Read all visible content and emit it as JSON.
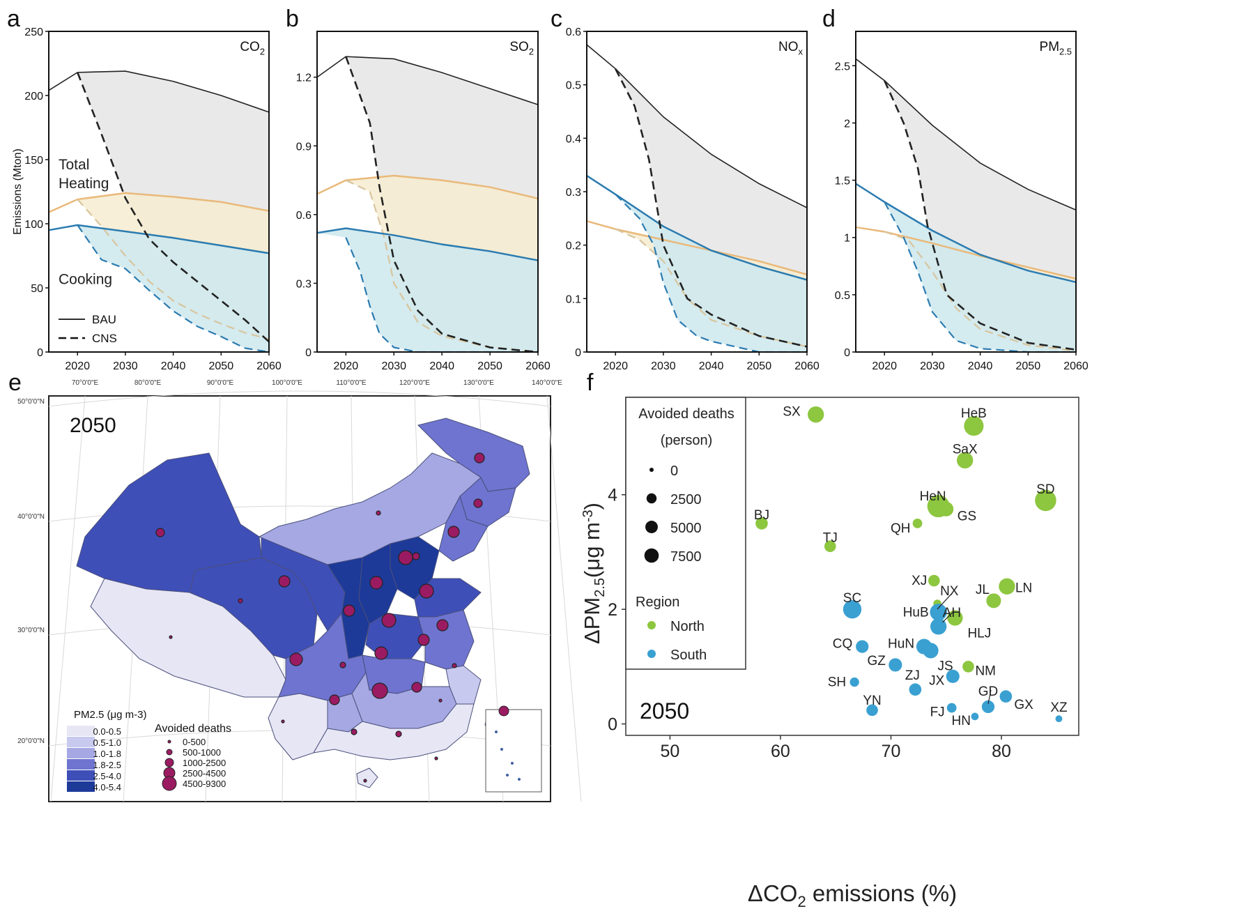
{
  "panels": {
    "a": "a",
    "b": "b",
    "c": "c",
    "d": "d",
    "e": "e",
    "f": "f"
  },
  "colors": {
    "total_fill": "#e9e9e9",
    "heating_fill": "#f6ecd0",
    "cooking_fill": "#cfe9ee",
    "total_line": "#222222",
    "heating_line": "#e9b97a",
    "cooking_line": "#2b7bb0",
    "north": "#8dc63f",
    "south": "#3aa0d2",
    "death_dot": "#9b1b62",
    "map_bins": [
      "#e6e6f5",
      "#c8c9ee",
      "#a5a8e3",
      "#6e74cf",
      "#3f4fb8",
      "#1d3a99"
    ]
  },
  "chart_data": [
    {
      "id": "a",
      "type": "line",
      "title": "CO2",
      "ylabel": "Emissions (Mton)",
      "xlim": [
        2014,
        2060
      ],
      "ylim": [
        0,
        250
      ],
      "xticks": [
        2020,
        2030,
        2040,
        2050,
        2060
      ],
      "yticks": [
        0,
        50,
        100,
        150,
        200,
        250
      ],
      "annotations": [
        "Total",
        "Heating",
        "Cooking"
      ],
      "legend": [
        "BAU",
        "CNS"
      ],
      "series": [
        {
          "name": "Total",
          "scenario": "BAU",
          "x": [
            2014,
            2020,
            2030,
            2040,
            2050,
            2060
          ],
          "values": [
            204,
            218,
            219,
            211,
            200,
            187
          ]
        },
        {
          "name": "Heating",
          "scenario": "BAU",
          "x": [
            2014,
            2020,
            2030,
            2040,
            2050,
            2060
          ],
          "values": [
            109,
            119,
            124,
            121,
            117,
            110
          ]
        },
        {
          "name": "Cooking",
          "scenario": "BAU",
          "x": [
            2014,
            2020,
            2030,
            2040,
            2050,
            2060
          ],
          "values": [
            95,
            99,
            94,
            89,
            83,
            77
          ]
        },
        {
          "name": "Total",
          "scenario": "CNS",
          "x": [
            2020,
            2025,
            2030,
            2035,
            2040,
            2045,
            2050,
            2055,
            2060
          ],
          "values": [
            218,
            170,
            120,
            88,
            70,
            55,
            40,
            25,
            8
          ]
        },
        {
          "name": "Heating",
          "scenario": "CNS",
          "x": [
            2020,
            2025,
            2030,
            2035,
            2040,
            2045,
            2050,
            2055,
            2060
          ],
          "values": [
            119,
            98,
            75,
            55,
            40,
            30,
            22,
            15,
            10
          ]
        },
        {
          "name": "Cooking",
          "scenario": "CNS",
          "x": [
            2020,
            2025,
            2030,
            2035,
            2040,
            2045,
            2050,
            2055,
            2060
          ],
          "values": [
            99,
            72,
            65,
            48,
            32,
            20,
            12,
            3,
            0
          ]
        }
      ]
    },
    {
      "id": "b",
      "type": "line",
      "title": "SO2",
      "xlim": [
        2014,
        2060
      ],
      "ylim": [
        0,
        1.4
      ],
      "xticks": [
        2020,
        2030,
        2040,
        2050,
        2060
      ],
      "yticks": [
        0,
        0.3,
        0.6,
        0.9,
        1.2
      ],
      "series": [
        {
          "name": "Total",
          "scenario": "BAU",
          "x": [
            2014,
            2020,
            2030,
            2040,
            2050,
            2060
          ],
          "values": [
            1.2,
            1.29,
            1.28,
            1.22,
            1.15,
            1.08
          ]
        },
        {
          "name": "Heating",
          "scenario": "BAU",
          "x": [
            2014,
            2020,
            2030,
            2040,
            2050,
            2060
          ],
          "values": [
            0.69,
            0.75,
            0.77,
            0.75,
            0.72,
            0.67
          ]
        },
        {
          "name": "Cooking",
          "scenario": "BAU",
          "x": [
            2014,
            2020,
            2030,
            2040,
            2050,
            2060
          ],
          "values": [
            0.52,
            0.54,
            0.51,
            0.47,
            0.44,
            0.4
          ]
        },
        {
          "name": "Total",
          "scenario": "CNS",
          "x": [
            2020,
            2025,
            2027,
            2030,
            2035,
            2040,
            2050,
            2060
          ],
          "values": [
            1.29,
            1.0,
            0.72,
            0.4,
            0.18,
            0.08,
            0.02,
            0.0
          ]
        },
        {
          "name": "Heating",
          "scenario": "CNS",
          "x": [
            2020,
            2025,
            2028,
            2030,
            2035,
            2040,
            2050,
            2060
          ],
          "values": [
            0.75,
            0.7,
            0.5,
            0.3,
            0.13,
            0.07,
            0.02,
            0.0
          ]
        },
        {
          "name": "Cooking",
          "scenario": "CNS",
          "x": [
            2020,
            2023,
            2025,
            2027,
            2030,
            2035,
            2040,
            2050,
            2060
          ],
          "values": [
            0.5,
            0.35,
            0.2,
            0.08,
            0.02,
            0.0,
            0.0,
            0.0,
            0.0
          ]
        }
      ]
    },
    {
      "id": "c",
      "type": "line",
      "title": "NOx",
      "xlim": [
        2014,
        2060
      ],
      "ylim": [
        0,
        0.6
      ],
      "xticks": [
        2020,
        2030,
        2040,
        2050,
        2060
      ],
      "yticks": [
        0,
        0.1,
        0.2,
        0.3,
        0.4,
        0.5,
        0.6
      ],
      "series": [
        {
          "name": "Total",
          "scenario": "BAU",
          "x": [
            2014,
            2020,
            2030,
            2040,
            2050,
            2060
          ],
          "values": [
            0.575,
            0.53,
            0.44,
            0.37,
            0.315,
            0.27
          ]
        },
        {
          "name": "Heating",
          "scenario": "BAU",
          "x": [
            2014,
            2020,
            2030,
            2040,
            2050,
            2060
          ],
          "values": [
            0.245,
            0.23,
            0.21,
            0.19,
            0.17,
            0.145
          ]
        },
        {
          "name": "Cooking",
          "scenario": "BAU",
          "x": [
            2014,
            2020,
            2030,
            2040,
            2050,
            2060
          ],
          "values": [
            0.33,
            0.295,
            0.235,
            0.19,
            0.16,
            0.135
          ]
        },
        {
          "name": "Total",
          "scenario": "CNS",
          "x": [
            2020,
            2024,
            2027,
            2030,
            2035,
            2040,
            2050,
            2060
          ],
          "values": [
            0.53,
            0.46,
            0.36,
            0.2,
            0.1,
            0.07,
            0.03,
            0.01
          ]
        },
        {
          "name": "Heating",
          "scenario": "CNS",
          "x": [
            2020,
            2025,
            2030,
            2035,
            2040,
            2050,
            2060
          ],
          "values": [
            0.23,
            0.21,
            0.17,
            0.1,
            0.06,
            0.03,
            0.01
          ]
        },
        {
          "name": "Cooking",
          "scenario": "CNS",
          "x": [
            2020,
            2025,
            2028,
            2030,
            2033,
            2037,
            2040,
            2050,
            2060
          ],
          "values": [
            0.295,
            0.25,
            0.2,
            0.13,
            0.06,
            0.03,
            0.02,
            0.0,
            0.0
          ]
        }
      ]
    },
    {
      "id": "d",
      "type": "line",
      "title": "PM2.5",
      "xlim": [
        2014,
        2060
      ],
      "ylim": [
        0,
        2.8
      ],
      "xticks": [
        2020,
        2030,
        2040,
        2050,
        2060
      ],
      "yticks": [
        0,
        0.5,
        1,
        1.5,
        2,
        2.5
      ],
      "series": [
        {
          "name": "Total",
          "scenario": "BAU",
          "x": [
            2014,
            2020,
            2030,
            2040,
            2050,
            2060
          ],
          "values": [
            2.56,
            2.37,
            1.98,
            1.65,
            1.42,
            1.24
          ]
        },
        {
          "name": "Heating",
          "scenario": "BAU",
          "x": [
            2014,
            2020,
            2030,
            2040,
            2050,
            2060
          ],
          "values": [
            1.09,
            1.05,
            0.95,
            0.84,
            0.74,
            0.64
          ]
        },
        {
          "name": "Cooking",
          "scenario": "BAU",
          "x": [
            2014,
            2020,
            2030,
            2040,
            2050,
            2060
          ],
          "values": [
            1.47,
            1.31,
            1.06,
            0.85,
            0.71,
            0.61
          ]
        },
        {
          "name": "Total",
          "scenario": "CNS",
          "x": [
            2020,
            2024,
            2027,
            2029,
            2033,
            2040,
            2050,
            2060
          ],
          "values": [
            2.37,
            2.0,
            1.6,
            1.1,
            0.5,
            0.25,
            0.08,
            0.02
          ]
        },
        {
          "name": "Heating",
          "scenario": "CNS",
          "x": [
            2020,
            2025,
            2030,
            2035,
            2040,
            2050,
            2060
          ],
          "values": [
            1.05,
            0.98,
            0.7,
            0.38,
            0.2,
            0.06,
            0.01
          ]
        },
        {
          "name": "Cooking",
          "scenario": "CNS",
          "x": [
            2020,
            2024,
            2027,
            2030,
            2035,
            2040,
            2050,
            2060
          ],
          "values": [
            1.31,
            1.0,
            0.7,
            0.35,
            0.1,
            0.03,
            0.0,
            0.0
          ]
        }
      ]
    },
    {
      "id": "e",
      "type": "map",
      "year_label": "2050",
      "lon_labels": [
        "70°0'0\"E",
        "80°0'0\"E",
        "90°0'0\"E",
        "100°0'0\"E",
        "110°0'0\"E",
        "120°0'0\"E",
        "130°0'0\"E",
        "140°0'0\"E"
      ],
      "lat_labels": [
        "50°0'0\"N",
        "40°0'0\"N",
        "30°0'0\"N",
        "20°0'0\"N"
      ],
      "color_legend_title": "PM2.5 (μg m-3)",
      "color_bins": [
        "0.0-0.5",
        "0.5-1.0",
        "1.0-1.8",
        "1.8-2.5",
        "2.5-4.0",
        "4.0-5.4"
      ],
      "size_legend_title": "Avoided deaths",
      "size_bins": [
        "0-500",
        "500-1000",
        "1000-2500",
        "2500-4500",
        "4500-9300"
      ]
    },
    {
      "id": "f",
      "type": "scatter",
      "year_label": "2050",
      "xlabel": "ΔCO2 emissions (%)",
      "ylabel": "ΔPM2.5(μg m-3)",
      "xlim": [
        46,
        87
      ],
      "ylim": [
        -0.2,
        5.7
      ],
      "xticks": [
        50,
        60,
        70,
        80
      ],
      "yticks": [
        0,
        2,
        4
      ],
      "legend": {
        "size_title": "Avoided deaths",
        "size_subtitle": "(person)",
        "size_labels": [
          "0",
          "2500",
          "5000",
          "7500"
        ],
        "size_values": [
          0,
          2500,
          5000,
          7500
        ],
        "region_title": "Region",
        "regions": [
          "North",
          "South"
        ]
      },
      "points": [
        {
          "label": "SX",
          "x": 63.2,
          "y": 5.4,
          "deaths": 4000,
          "region": "North"
        },
        {
          "label": "HeB",
          "x": 77.5,
          "y": 5.2,
          "deaths": 6500,
          "region": "North"
        },
        {
          "label": "SaX",
          "x": 76.7,
          "y": 4.6,
          "deaths": 4000,
          "region": "North"
        },
        {
          "label": "SD",
          "x": 84.0,
          "y": 3.9,
          "deaths": 8000,
          "region": "North"
        },
        {
          "label": "HeN",
          "x": 74.3,
          "y": 3.8,
          "deaths": 9000,
          "region": "North"
        },
        {
          "label": "GS",
          "x": 75.0,
          "y": 3.75,
          "deaths": 3000,
          "region": "North"
        },
        {
          "label": "QH",
          "x": 72.4,
          "y": 3.5,
          "deaths": 800,
          "region": "North"
        },
        {
          "label": "BJ",
          "x": 58.3,
          "y": 3.5,
          "deaths": 1800,
          "region": "North"
        },
        {
          "label": "TJ",
          "x": 64.5,
          "y": 3.1,
          "deaths": 1500,
          "region": "North"
        },
        {
          "label": "XJ",
          "x": 73.9,
          "y": 2.5,
          "deaths": 1500,
          "region": "North"
        },
        {
          "label": "NX",
          "x": 74.2,
          "y": 2.1,
          "deaths": 400,
          "region": "North"
        },
        {
          "label": "LN",
          "x": 80.5,
          "y": 2.4,
          "deaths": 4000,
          "region": "North"
        },
        {
          "label": "JL",
          "x": 79.3,
          "y": 2.15,
          "deaths": 3000,
          "region": "North"
        },
        {
          "label": "HLJ",
          "x": 75.8,
          "y": 1.85,
          "deaths": 3500,
          "region": "North"
        },
        {
          "label": "NM",
          "x": 77.0,
          "y": 1.0,
          "deaths": 1500,
          "region": "North"
        },
        {
          "label": "SC",
          "x": 66.5,
          "y": 2.0,
          "deaths": 5500,
          "region": "South"
        },
        {
          "label": "HuB",
          "x": 74.3,
          "y": 1.95,
          "deaths": 4500,
          "region": "South"
        },
        {
          "label": "AH",
          "x": 74.3,
          "y": 1.7,
          "deaths": 4000,
          "region": "South"
        },
        {
          "label": "HuN",
          "x": 73.0,
          "y": 1.35,
          "deaths": 3500,
          "region": "South"
        },
        {
          "label": "JS",
          "x": 73.6,
          "y": 1.28,
          "deaths": 3500,
          "region": "South"
        },
        {
          "label": "CQ",
          "x": 67.4,
          "y": 1.35,
          "deaths": 2000,
          "region": "South"
        },
        {
          "label": "GZ",
          "x": 70.4,
          "y": 1.03,
          "deaths": 2300,
          "region": "South"
        },
        {
          "label": "JX",
          "x": 75.6,
          "y": 0.83,
          "deaths": 2300,
          "region": "South"
        },
        {
          "label": "SH",
          "x": 66.7,
          "y": 0.73,
          "deaths": 700,
          "region": "South"
        },
        {
          "label": "ZJ",
          "x": 72.2,
          "y": 0.6,
          "deaths": 1800,
          "region": "South"
        },
        {
          "label": "GD",
          "x": 78.8,
          "y": 0.3,
          "deaths": 2000,
          "region": "South"
        },
        {
          "label": "GX",
          "x": 80.4,
          "y": 0.48,
          "deaths": 1800,
          "region": "South"
        },
        {
          "label": "YN",
          "x": 68.3,
          "y": 0.24,
          "deaths": 1500,
          "region": "South"
        },
        {
          "label": "FJ",
          "x": 75.5,
          "y": 0.28,
          "deaths": 800,
          "region": "South"
        },
        {
          "label": "HN",
          "x": 77.6,
          "y": 0.13,
          "deaths": 300,
          "region": "South"
        },
        {
          "label": "XZ",
          "x": 85.2,
          "y": 0.09,
          "deaths": 200,
          "region": "South"
        }
      ]
    }
  ]
}
